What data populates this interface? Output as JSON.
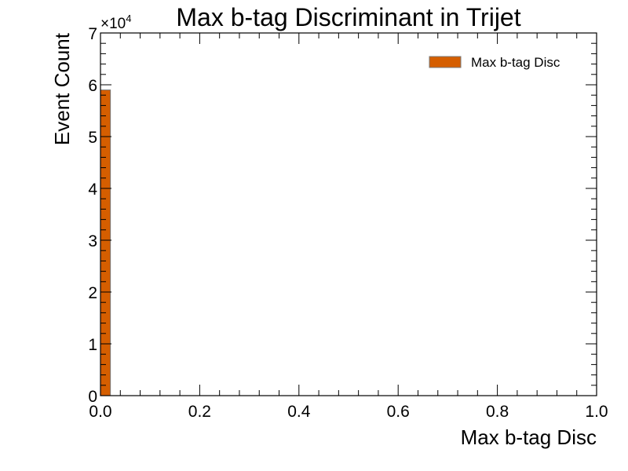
{
  "chart_data": {
    "type": "bar",
    "title": "Max b-tag Discriminant in Trijet",
    "xlabel": "Max b-tag Disc",
    "ylabel": "Event Count",
    "xlim": [
      0,
      1
    ],
    "ylim": [
      0,
      70000
    ],
    "x_ticks": [
      0,
      0.2,
      0.4,
      0.6,
      0.8,
      1
    ],
    "x_tick_labels": [
      "0.0",
      "0.2",
      "0.4",
      "0.6",
      "0.8",
      "1.0"
    ],
    "y_ticks": [
      0,
      10000,
      20000,
      30000,
      40000,
      50000,
      60000,
      70000
    ],
    "y_tick_labels": [
      "0",
      "1",
      "2",
      "3",
      "4",
      "5",
      "6",
      "7"
    ],
    "y_multiplier": {
      "base": "×10",
      "exponent": "4"
    },
    "legend_position": "top-right",
    "grid": false,
    "series": [
      {
        "name": "Max b-tag Disc",
        "color": "#d55e00",
        "edge_color": "#777777",
        "bins": [
          {
            "x0": 0.0,
            "x1": 0.02,
            "value": 59000
          }
        ]
      }
    ]
  }
}
